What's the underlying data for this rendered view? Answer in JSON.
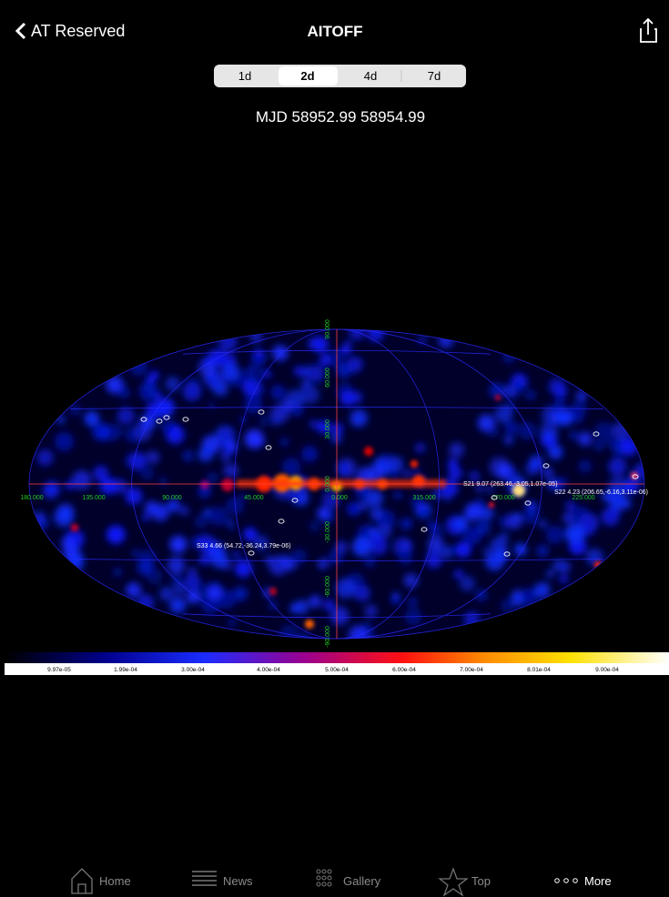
{
  "header": {
    "back": "AT Reserved",
    "title": "AITOFF"
  },
  "segments": [
    "1d",
    "2d",
    "4d",
    "7d"
  ],
  "subtitle": "MJD 58952.99 58954.99",
  "map": {
    "lon_labels": [
      "180.000",
      "135.000",
      "90.000",
      "45.000",
      "0.000",
      "315.000",
      "270.000",
      "225.000"
    ],
    "lat_labels": [
      "90.000",
      "60.000",
      "30.000",
      "0.000",
      "-30.000",
      "-60.000",
      "-90.000"
    ],
    "sources": [
      "S21 9.07 (263.46,-3.05,1.07e-05)",
      "S22 4.23 (206.65,-6.16,3.11e-06)",
      "S33 4.66 (54.72,-36.24,3.79e-06)"
    ]
  },
  "colorbar": {
    "labels": [
      "9.97e-05",
      "1.99e-04",
      "3.00e-04",
      "4.00e-04",
      "5.00e-04",
      "6.00e-04",
      "7.00e-04",
      "8.01e-04",
      "9.00e-04"
    ]
  },
  "tabs": [
    "Home",
    "News",
    "Gallery",
    "Top",
    "More"
  ]
}
